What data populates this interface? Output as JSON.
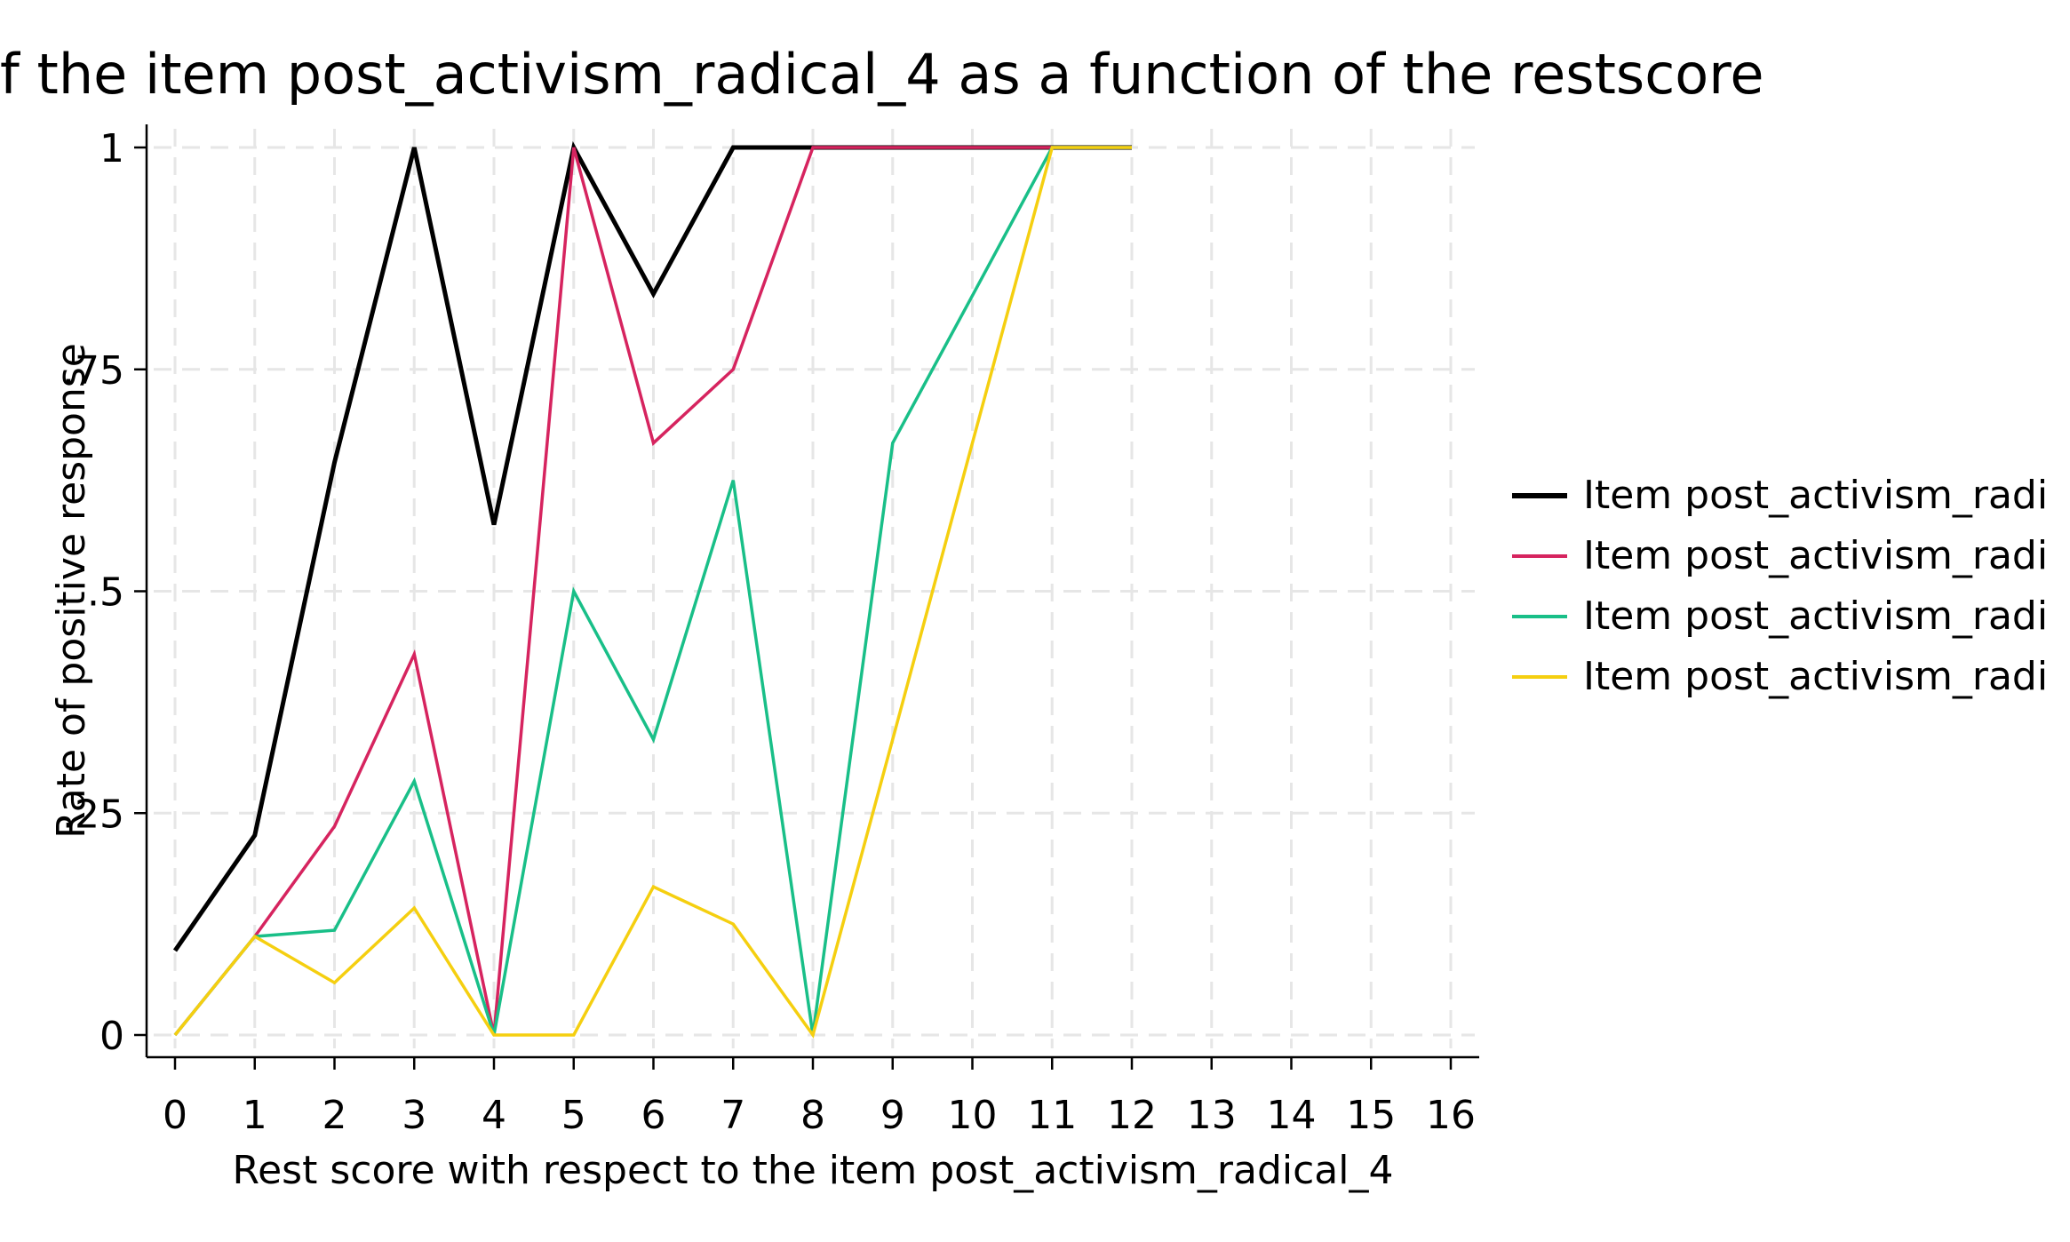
{
  "chart_data": {
    "type": "line",
    "title": "f the item post_activism_radical_4 as a function of the restscore",
    "xlabel": "Rest score with respect to the item post_activism_radical_4",
    "ylabel": "Rate of positive response",
    "xlim": [
      0,
      16
    ],
    "ylim": [
      0,
      1
    ],
    "x_ticks": [
      0,
      1,
      2,
      3,
      4,
      5,
      6,
      7,
      8,
      9,
      10,
      11,
      12,
      13,
      14,
      15,
      16
    ],
    "x_tick_labels": [
      "0",
      "1",
      "2",
      "3",
      "4",
      "5",
      "6",
      "7",
      "8",
      "9",
      "10",
      "11",
      "12",
      "13",
      "14",
      "15",
      "16"
    ],
    "y_ticks": [
      0,
      0.25,
      0.5,
      0.75,
      1
    ],
    "y_tick_labels": [
      "0",
      ".25",
      ".5",
      ".75",
      "1"
    ],
    "grid": true,
    "legend_position": "right",
    "series": [
      {
        "name": "Item post_activism_radi",
        "color": "#000000",
        "x": [
          0,
          1,
          2,
          3,
          4,
          5,
          6,
          7,
          8,
          9,
          10,
          11,
          12
        ],
        "values": [
          0.095,
          0.225,
          0.645,
          1.0,
          0.575,
          1.0,
          0.835,
          1.0,
          1.0,
          1.0,
          1.0,
          1.0,
          1.0
        ]
      },
      {
        "name": "Item post_activism_radi",
        "color": "#d6245f",
        "x": [
          0,
          1,
          2,
          3,
          4,
          5,
          6,
          7,
          8,
          9,
          10,
          11,
          12
        ],
        "values": [
          0.0,
          0.111,
          0.235,
          0.429,
          0.0,
          1.0,
          0.667,
          0.75,
          1.0,
          1.0,
          1.0,
          1.0,
          1.0
        ]
      },
      {
        "name": "Item post_activism_radi",
        "color": "#19bf88",
        "x": [
          0,
          1,
          2,
          3,
          4,
          5,
          6,
          7,
          8,
          9,
          10,
          11,
          12
        ],
        "values": [
          0.0,
          0.111,
          0.118,
          0.286,
          0.0,
          0.5,
          0.333,
          0.625,
          0.0,
          0.667,
          0.833,
          1.0,
          1.0
        ]
      },
      {
        "name": "Item post_activism_radi",
        "color": "#f5cf10",
        "x": [
          0,
          1,
          2,
          3,
          4,
          5,
          6,
          7,
          8,
          9,
          10,
          11,
          12
        ],
        "values": [
          0.0,
          0.111,
          0.059,
          0.143,
          0.0,
          0.0,
          0.167,
          0.125,
          0.0,
          0.333,
          0.667,
          1.0,
          1.0
        ]
      }
    ]
  }
}
